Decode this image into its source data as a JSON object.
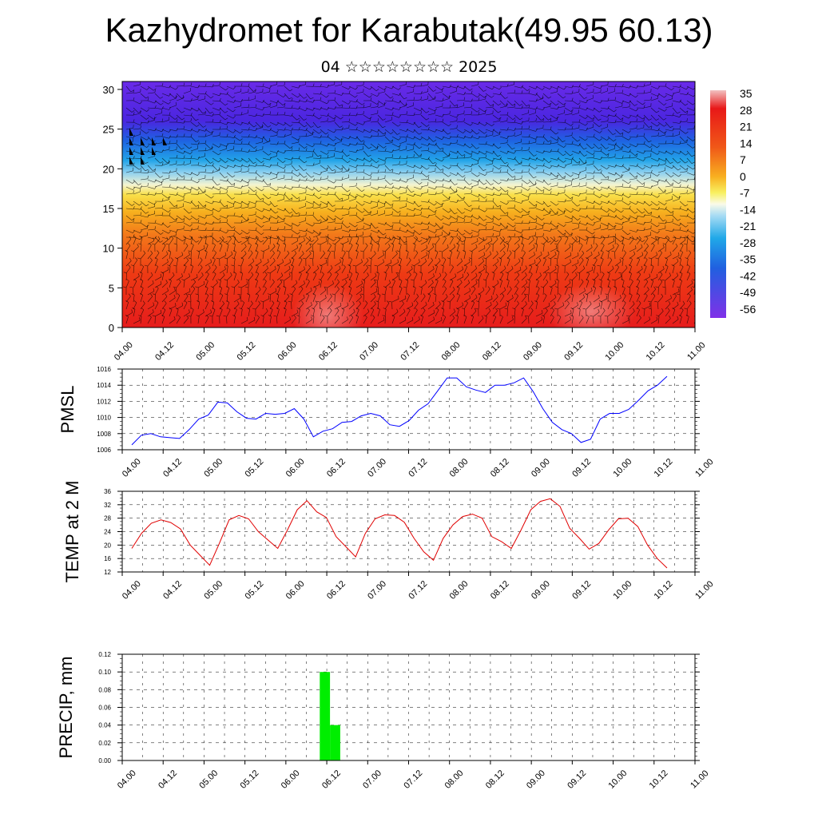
{
  "title": "Kazhydromet for Karabutak(49.95 60.13)",
  "subtitle": "04 ☆☆☆☆☆☆☆☆ 2025",
  "chart_data": [
    {
      "type": "heatmap",
      "description_of_layers": "filled contours with wind barbs",
      "y_ticks": [
        "0",
        "5",
        "10",
        "15",
        "20",
        "25",
        "30"
      ],
      "ylim": [
        0,
        31
      ],
      "x_ticks": [
        "04.00",
        "04.12",
        "05.00",
        "05.12",
        "06.00",
        "06.12",
        "07.00",
        "07.12",
        "08.00",
        "08.12",
        "09.00",
        "09.12",
        "10.00",
        "10.12",
        "11.00"
      ],
      "colorbar_labels": [
        "35",
        "28",
        "21",
        "14",
        "7",
        "0",
        "-7",
        "-14",
        "-21",
        "-28",
        "-35",
        "-42",
        "-49",
        "-56"
      ],
      "colorbar_colors": [
        "#e8a0a0",
        "#e81818",
        "#f06018",
        "#f8a818",
        "#f8e048",
        "#e8f0f8",
        "#20a8e8",
        "#2060e0",
        "#6020e0",
        "#8838e8"
      ]
    },
    {
      "type": "line",
      "ylabel": "PMSL",
      "yticks": [
        "1006",
        "1008",
        "1010",
        "1012",
        "1014",
        "1016"
      ],
      "ylim": [
        1006,
        1016
      ],
      "x_ticks": [
        "04.00",
        "04.12",
        "05.00",
        "05.12",
        "06.00",
        "06.12",
        "07.00",
        "07.12",
        "08.00",
        "08.12",
        "09.00",
        "09.12",
        "10.00",
        "10.12",
        "11.00"
      ],
      "color": "#0000ff",
      "series": [
        {
          "values": [
            1006.6,
            1007.8,
            1008.0,
            1007.6,
            1007.5,
            1007.4,
            1008.5,
            1009.8,
            1010.3,
            1011.9,
            1011.8,
            1010.7,
            1009.9,
            1009.8,
            1010.5,
            1010.4,
            1010.5,
            1011.1,
            1009.8,
            1007.6,
            1008.3,
            1008.6,
            1009.4,
            1009.5,
            1010.2,
            1010.5,
            1010.2,
            1009.1,
            1008.9,
            1009.6,
            1010.9,
            1011.7,
            1013.3,
            1014.9,
            1014.9,
            1013.8,
            1013.4,
            1013.1,
            1014.0,
            1014.0,
            1014.3,
            1014.9,
            1013.2,
            1011.1,
            1009.4,
            1008.5,
            1008.0,
            1006.9,
            1007.3,
            1009.8,
            1010.5,
            1010.5,
            1011.0,
            1012.1,
            1013.3,
            1014.0,
            1015.1
          ]
        }
      ]
    },
    {
      "type": "line",
      "ylabel": "TEMP at 2 M",
      "yticks": [
        "12",
        "16",
        "20",
        "24",
        "28",
        "32",
        "36"
      ],
      "ylim": [
        12,
        36
      ],
      "x_ticks": [
        "04.00",
        "04.12",
        "05.00",
        "05.12",
        "06.00",
        "06.12",
        "07.00",
        "07.12",
        "08.00",
        "08.12",
        "09.00",
        "09.12",
        "10.00",
        "10.12",
        "11.00"
      ],
      "color": "#e00000",
      "series": [
        {
          "values": [
            19.0,
            23.5,
            26.5,
            27.5,
            26.7,
            24.8,
            20.0,
            17.0,
            14.0,
            20.5,
            27.5,
            28.8,
            27.8,
            24.0,
            21.5,
            19.0,
            24.5,
            30.5,
            33.2,
            29.9,
            28.2,
            22.5,
            19.5,
            16.5,
            23.5,
            27.8,
            29.0,
            28.8,
            26.8,
            22.0,
            18.0,
            15.5,
            22.0,
            26.0,
            28.5,
            29.2,
            28.0,
            22.5,
            21.0,
            19.0,
            24.5,
            30.5,
            33.0,
            33.8,
            31.5,
            25.0,
            22.0,
            18.8,
            20.5,
            24.5,
            27.8,
            28.0,
            25.5,
            20.0,
            16.0,
            13.2
          ]
        }
      ]
    },
    {
      "type": "bar",
      "ylabel": "PRECIP, mm",
      "yticks": [
        "0.00",
        "0.02",
        "0.04",
        "0.06",
        "0.08",
        "0.10",
        "0.12"
      ],
      "ylim": [
        0,
        0.12
      ],
      "x_ticks": [
        "04.00",
        "04.12",
        "05.00",
        "05.12",
        "06.00",
        "06.12",
        "07.00",
        "07.12",
        "08.00",
        "08.12",
        "09.00",
        "09.12",
        "10.00",
        "10.12",
        "11.00"
      ],
      "color": "#00ee00",
      "bars": [
        {
          "x_hours": 57,
          "value": 0.1
        },
        {
          "x_hours": 60,
          "value": 0.04
        }
      ]
    }
  ]
}
